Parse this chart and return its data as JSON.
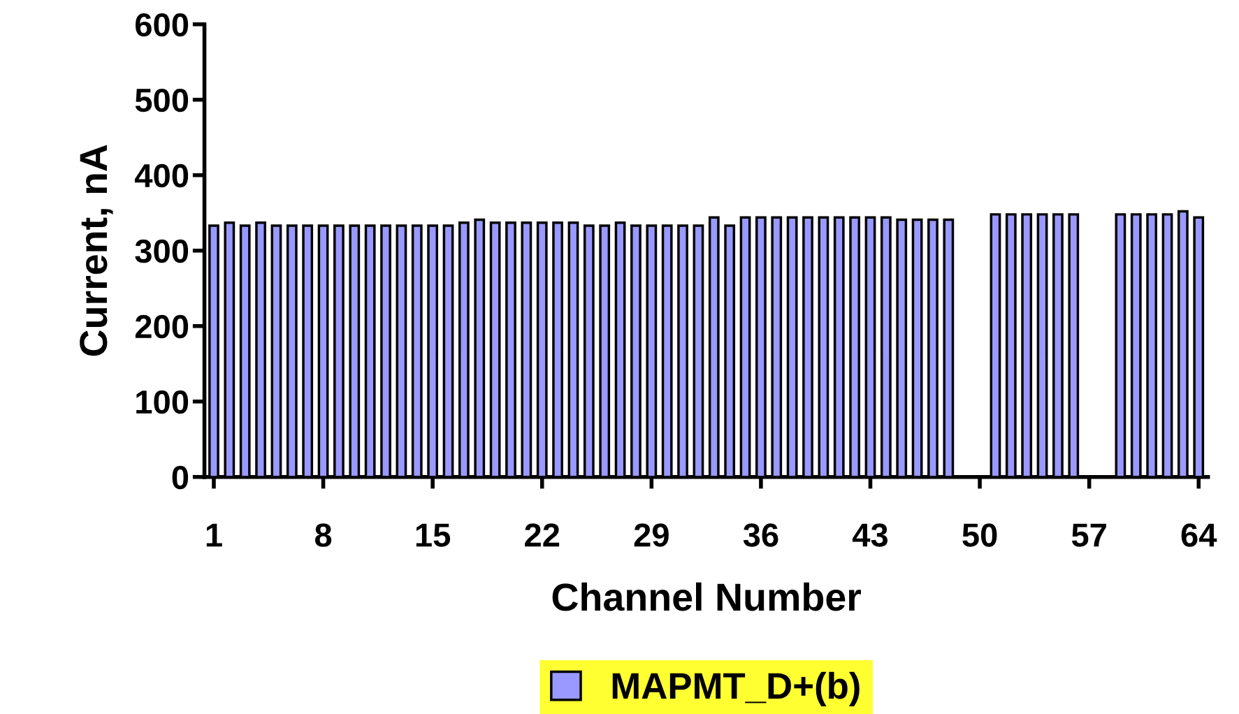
{
  "chart_data": {
    "type": "bar",
    "xlabel": "Channel Number",
    "ylabel": "Current, nA",
    "categories": [
      "1",
      null,
      null,
      null,
      null,
      null,
      null,
      "8",
      null,
      null,
      null,
      null,
      null,
      null,
      "15",
      null,
      null,
      null,
      null,
      null,
      null,
      "22",
      null,
      null,
      null,
      null,
      null,
      null,
      "29",
      null,
      null,
      null,
      null,
      null,
      null,
      "36",
      null,
      null,
      null,
      null,
      null,
      null,
      "43",
      null,
      null,
      null,
      null,
      null,
      null,
      "50",
      null,
      null,
      null,
      null,
      null,
      null,
      "57",
      null,
      null,
      null,
      null,
      null,
      null,
      "64"
    ],
    "series": [
      {
        "name": "MAPMT_D+(b)",
        "color": "#9999ff",
        "values": [
          333,
          337,
          333,
          337,
          333,
          333,
          333,
          333,
          333,
          333,
          333,
          333,
          333,
          333,
          333,
          333,
          337,
          341,
          337,
          337,
          337,
          337,
          337,
          337,
          333,
          333,
          337,
          333,
          333,
          333,
          333,
          333,
          344,
          333,
          344,
          344,
          344,
          344,
          344,
          344,
          344,
          344,
          344,
          344,
          341,
          341,
          341,
          341,
          null,
          null,
          348,
          348,
          348,
          348,
          348,
          348,
          null,
          null,
          348,
          348,
          348,
          348,
          352,
          344
        ]
      }
    ],
    "ylim": [
      0,
      600
    ],
    "yticks": [
      0,
      100,
      200,
      300,
      400,
      500,
      600
    ],
    "grid": false,
    "legend": "bottom"
  }
}
